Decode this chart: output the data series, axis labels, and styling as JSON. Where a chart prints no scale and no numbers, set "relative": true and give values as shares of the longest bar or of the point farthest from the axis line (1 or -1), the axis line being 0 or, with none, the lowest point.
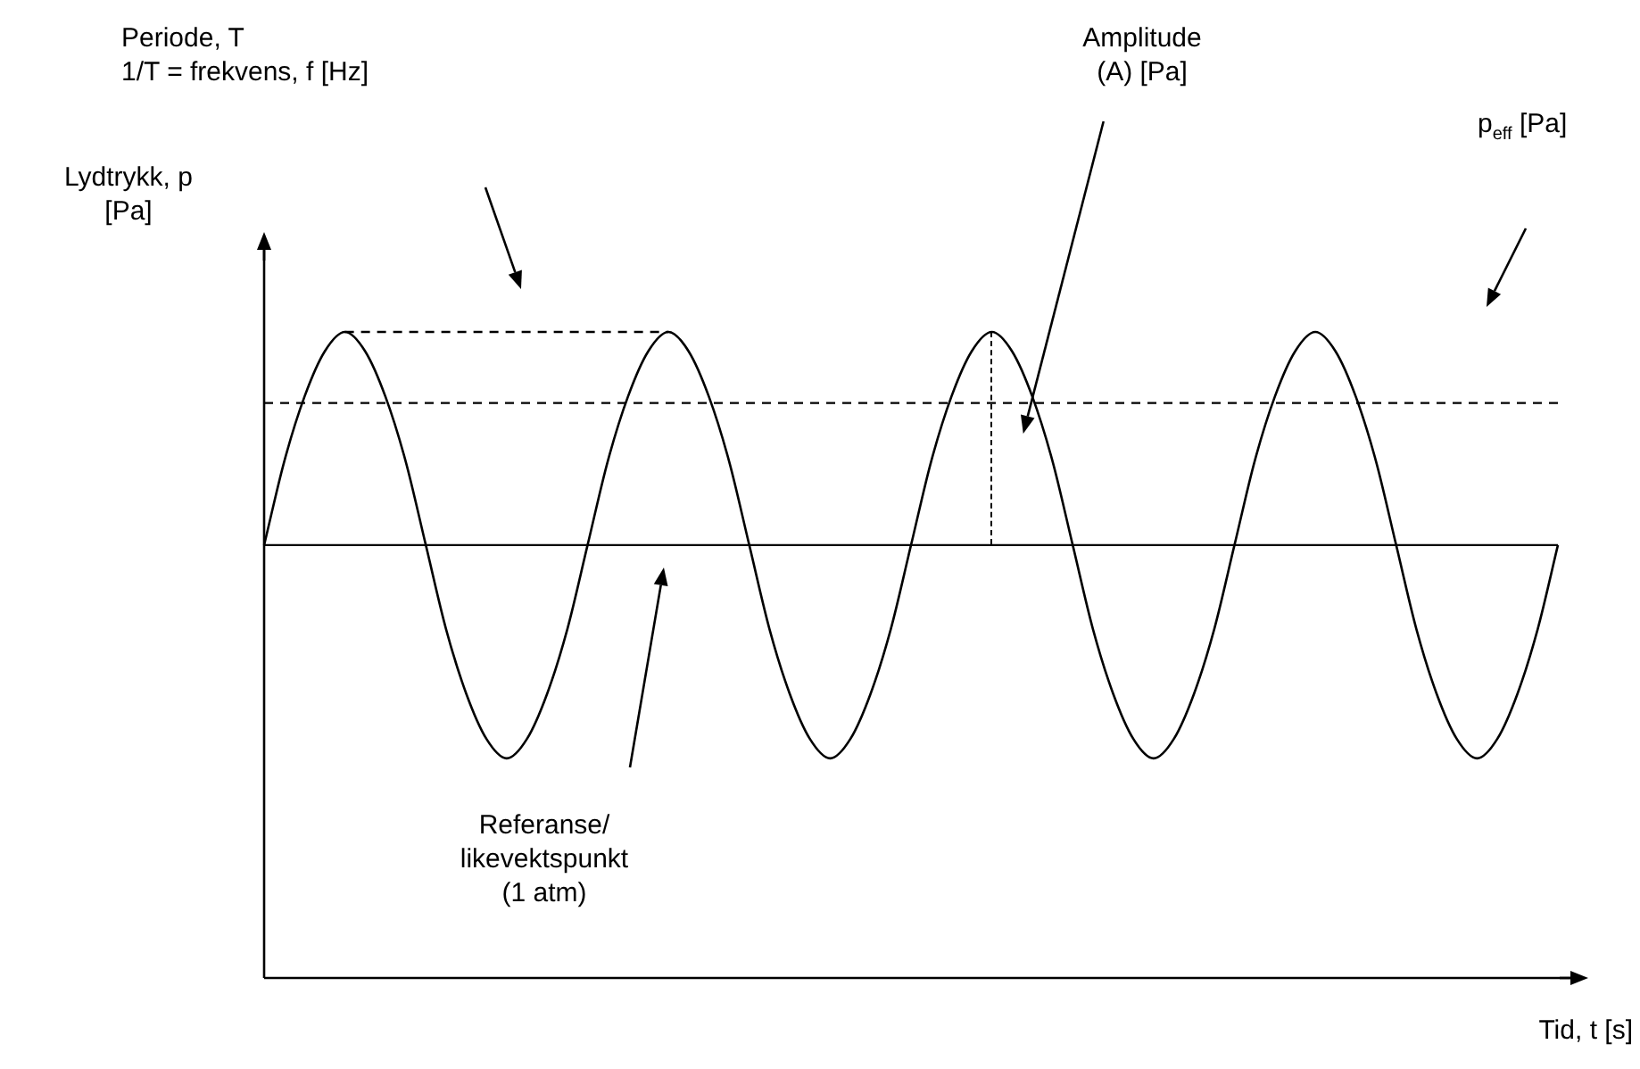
{
  "chart_data": {
    "type": "line",
    "relative": true,
    "tick_labels": false,
    "legend": false,
    "marker": "none",
    "xlabel": "Tid, t [s]",
    "ylabel": "Lydtrykk, p\n[Pa]",
    "categories": [
      null,
      null,
      null,
      null,
      null,
      null,
      null,
      null,
      null,
      null,
      null,
      null,
      null,
      null,
      null,
      null,
      null,
      null,
      null,
      null,
      null,
      null,
      null,
      null,
      null,
      null,
      null,
      null,
      null,
      null,
      null,
      null,
      null,
      null,
      null,
      null,
      null,
      null,
      null,
      null,
      null,
      null,
      null,
      null,
      null,
      null,
      null,
      null,
      null,
      null,
      null,
      null,
      null,
      null,
      null,
      null,
      null,
      null,
      null,
      null,
      null,
      null,
      null,
      null,
      null
    ],
    "series": [
      {
        "color": "#000000",
        "values": [
          0.67,
          0.8,
          0.9,
          0.97,
          1,
          0.97,
          0.9,
          0.8,
          0.67,
          0.54,
          0.44,
          0.37,
          0.34,
          0.37,
          0.44,
          0.54,
          0.67,
          0.8,
          0.9,
          0.97,
          1,
          0.97,
          0.9,
          0.8,
          0.67,
          0.54,
          0.44,
          0.37,
          0.34,
          0.37,
          0.44,
          0.54,
          0.67,
          0.8,
          0.9,
          0.97,
          1,
          0.97,
          0.9,
          0.8,
          0.67,
          0.54,
          0.44,
          0.37,
          0.34,
          0.37,
          0.44,
          0.54,
          0.67,
          0.8,
          0.9,
          0.97,
          1,
          0.97,
          0.9,
          0.8,
          0.67,
          0.54,
          0.44,
          0.37,
          0.34,
          0.37,
          0.44,
          0.54,
          0.67
        ]
      },
      {
        "color": "#000000",
        "line_style": "dashed",
        "values": [
          null,
          null,
          null,
          null,
          1,
          null,
          null,
          null,
          null,
          null,
          null,
          null,
          null,
          null,
          null,
          null,
          null,
          null,
          null,
          null,
          1,
          null,
          null,
          null,
          null,
          null,
          null,
          null,
          null,
          null,
          null,
          null,
          null,
          null,
          null,
          null,
          null,
          null,
          null,
          null,
          null,
          null,
          null,
          null,
          null,
          null,
          null,
          null,
          null,
          null,
          null,
          null,
          null,
          null,
          null,
          null,
          null,
          null,
          null,
          null,
          null,
          null,
          null,
          null,
          null
        ]
      }
    ],
    "ref_lines": [
      {
        "axis": "y",
        "value": 0.67,
        "color": "#000000",
        "line_style": "solid"
      },
      {
        "axis": "y",
        "value": 0.89,
        "color": "#000000",
        "line_style": "dashed"
      }
    ],
    "annotations": [
      "Periode, T\n1/T = frekvens, f [Hz]",
      "Amplitude\n(A) [Pa]",
      "p$_{eff}$ [Pa]",
      "Referanse/\nlikevektspunkt\n(1 atm)"
    ]
  }
}
